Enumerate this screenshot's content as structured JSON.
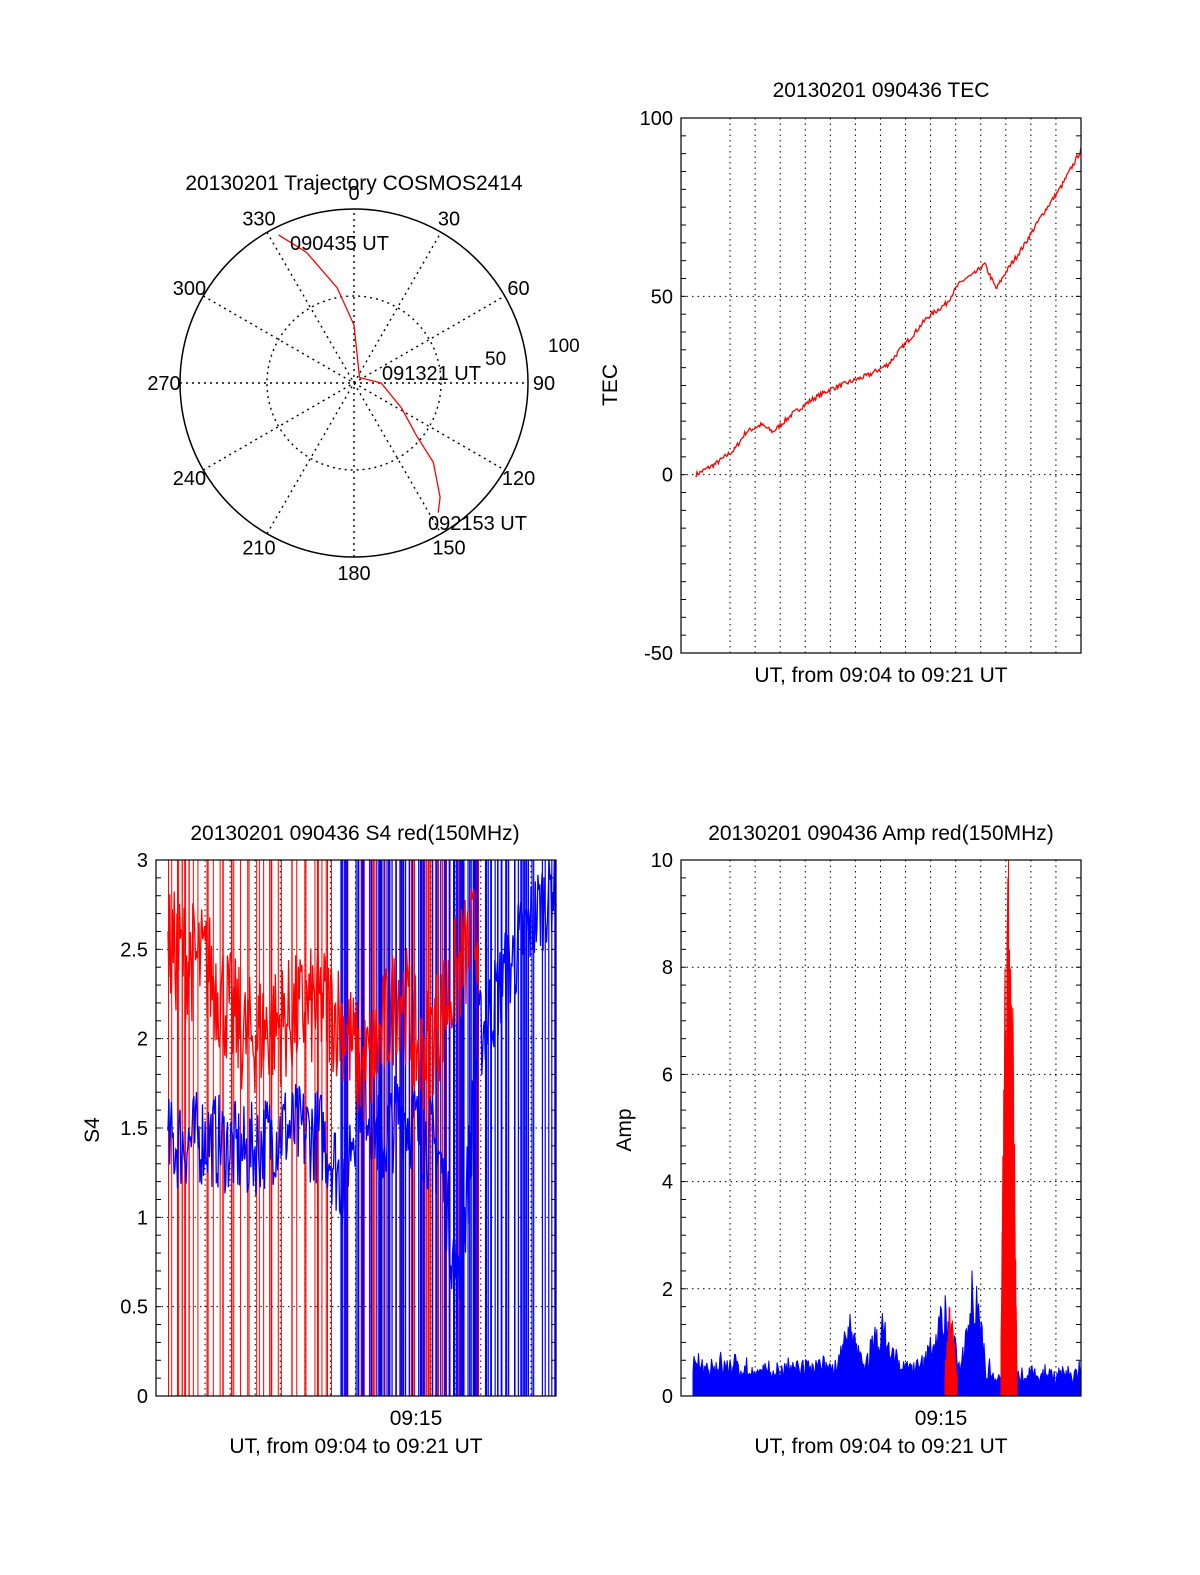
{
  "colors": {
    "red_series": "#ff0000",
    "blue_series": "#0000ff",
    "axes": "#000000",
    "grid": "#000000",
    "background": "#ffffff"
  },
  "chart_data": [
    {
      "type": "polar",
      "title": "20130201 Trajectory COSMOS2414",
      "azimuth_labels": [
        "0",
        "30",
        "60",
        "90",
        "120",
        "150",
        "180",
        "210",
        "240",
        "270",
        "300",
        "330"
      ],
      "radial_ticks": [
        50,
        100
      ],
      "radial_tick_labels": [
        "50",
        "100"
      ],
      "annotations": {
        "start": "090435 UT",
        "middle": "091321 UT",
        "end": "092153 UT"
      },
      "trajectory": {
        "color": "#ff0000",
        "azimuth_deg": [
          333,
          340,
          350,
          0,
          45,
          90,
          118,
          130,
          135,
          143,
          147
        ],
        "zenith_deg": [
          86,
          72,
          50,
          30,
          4,
          14,
          28,
          42,
          58,
          74,
          80
        ]
      }
    },
    {
      "type": "line",
      "title": "20130201 090436 TEC",
      "xlabel": "UT, from 09:04 to 09:21 UT",
      "ylabel": "TEC",
      "ylim": [
        -50,
        100
      ],
      "yticks": [
        -50,
        0,
        50,
        100
      ],
      "ytick_labels": [
        "-50",
        "0",
        "50",
        "100"
      ],
      "grid": true,
      "series": [
        {
          "color": "#ff0000",
          "x_frac": [
            0,
            0.05,
            0.1,
            0.13,
            0.17,
            0.2,
            0.25,
            0.3,
            0.35,
            0.4,
            0.45,
            0.5,
            0.53,
            0.57,
            0.6,
            0.65,
            0.68,
            0.7,
            0.72,
            0.75,
            0.78,
            0.8,
            0.85,
            0.9,
            0.95,
            1
          ],
          "values": [
            0,
            3,
            7,
            12,
            14,
            12,
            17,
            21,
            24,
            26,
            28,
            31,
            35,
            40,
            44,
            48,
            53,
            55,
            56,
            59,
            52,
            56,
            64,
            73,
            81,
            91
          ]
        }
      ]
    },
    {
      "type": "line",
      "title": "20130201 090436 S4 red(150MHz)",
      "xlabel": "UT, from 09:04 to 09:21 UT",
      "ylabel": "S4",
      "xtick_labels": [
        "09:15"
      ],
      "ylim": [
        0,
        3
      ],
      "yticks": [
        0,
        0.5,
        1,
        1.5,
        2,
        2.5,
        3
      ],
      "ytick_labels": [
        "0",
        "0.5",
        "1",
        "1.5",
        "2",
        "2.5",
        "3"
      ],
      "grid": true,
      "series": [
        {
          "color": "#0000ff",
          "x_frac": [
            0,
            0.1,
            0.2,
            0.3,
            0.4,
            0.45,
            0.5,
            0.55,
            0.6,
            0.7,
            0.75,
            0.8,
            0.9,
            1
          ],
          "values": [
            1.4,
            1.45,
            1.35,
            1.5,
            1.45,
            1.2,
            1.75,
            1.4,
            1.6,
            1.35,
            0.55,
            2.0,
            2.5,
            2.9
          ]
        },
        {
          "color": "#ff0000",
          "x_frac": [
            0,
            0.1,
            0.2,
            0.3,
            0.4,
            0.45,
            0.5,
            0.55,
            0.6,
            0.65,
            0.7,
            0.75,
            0.8
          ],
          "values": [
            2.5,
            2.4,
            2.0,
            2.1,
            2.2,
            2.1,
            1.8,
            2.0,
            2.3,
            1.9,
            2.1,
            2.4,
            2.6
          ]
        }
      ]
    },
    {
      "type": "line",
      "title": "20130201 090436 Amp red(150MHz)",
      "xlabel": "UT, from 09:04 to 09:21 UT",
      "ylabel": "Amp",
      "xtick_labels": [
        "09:15"
      ],
      "ylim": [
        0,
        10
      ],
      "yticks": [
        0,
        2,
        4,
        6,
        8,
        10
      ],
      "ytick_labels": [
        "0",
        "2",
        "4",
        "6",
        "8",
        "10"
      ],
      "grid": true,
      "series": [
        {
          "color": "#0000ff",
          "x_frac": [
            0,
            0.1,
            0.2,
            0.3,
            0.38,
            0.42,
            0.46,
            0.5,
            0.55,
            0.6,
            0.66,
            0.7,
            0.72,
            0.74,
            0.76,
            0.8,
            0.85,
            0.9,
            1
          ],
          "values": [
            0.6,
            0.7,
            0.5,
            0.6,
            0.6,
            1.3,
            0.7,
            1.4,
            0.6,
            0.6,
            1.7,
            0.5,
            2.1,
            2.3,
            0.6,
            0.4,
            0.4,
            0.5,
            0.5
          ]
        },
        {
          "color": "#ff0000",
          "x_frac": [
            0.66,
            0.67,
            0.68,
            0.69,
            0.8,
            0.81,
            0.82,
            0.83,
            0.84
          ],
          "values": [
            0.4,
            1.6,
            1.2,
            0.4,
            1.0,
            7.2,
            9.1,
            6.5,
            0.5
          ]
        }
      ]
    }
  ]
}
